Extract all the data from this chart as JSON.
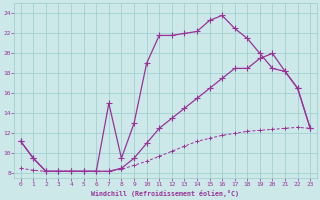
{
  "xlabel": "Windchill (Refroidissement éolien,°C)",
  "bg_color": "#cce8e8",
  "grid_color": "#99cccc",
  "line_color": "#993399",
  "xlim": [
    -0.5,
    23.5
  ],
  "ylim": [
    7.5,
    25.0
  ],
  "xticks": [
    0,
    1,
    2,
    3,
    4,
    5,
    6,
    7,
    8,
    9,
    10,
    11,
    12,
    13,
    14,
    15,
    16,
    17,
    18,
    19,
    20,
    21,
    22,
    23
  ],
  "yticks": [
    8,
    10,
    12,
    14,
    16,
    18,
    20,
    22,
    24
  ],
  "line1_x": [
    0,
    1,
    2,
    3,
    4,
    5,
    6,
    7,
    8,
    9,
    10,
    11,
    12,
    13,
    14,
    15,
    16,
    17,
    18,
    19,
    20,
    21,
    22,
    23
  ],
  "line1_y": [
    11.2,
    9.5,
    8.2,
    8.2,
    8.2,
    8.2,
    8.2,
    15.0,
    9.5,
    13.0,
    19.0,
    21.8,
    21.8,
    22.0,
    22.2,
    23.3,
    23.8,
    22.5,
    21.5,
    20.0,
    18.5,
    18.2,
    16.5,
    12.5
  ],
  "line2_x": [
    0,
    1,
    2,
    3,
    4,
    5,
    6,
    7,
    8,
    9,
    10,
    11,
    12,
    13,
    14,
    15,
    16,
    17,
    18,
    19,
    20,
    21,
    22,
    23
  ],
  "line2_y": [
    11.2,
    9.5,
    8.2,
    8.2,
    8.2,
    8.2,
    8.2,
    8.2,
    8.5,
    9.5,
    11.0,
    12.5,
    13.5,
    14.5,
    15.5,
    16.5,
    17.5,
    18.5,
    18.5,
    19.5,
    20.0,
    18.2,
    16.5,
    12.5
  ],
  "line3_x": [
    0,
    1,
    2,
    3,
    4,
    5,
    6,
    7,
    8,
    9,
    10,
    11,
    12,
    13,
    14,
    15,
    16,
    17,
    18,
    19,
    20,
    21,
    22,
    23
  ],
  "line3_y": [
    8.5,
    8.3,
    8.2,
    8.2,
    8.2,
    8.2,
    8.2,
    8.2,
    8.4,
    8.8,
    9.2,
    9.7,
    10.2,
    10.7,
    11.2,
    11.5,
    11.8,
    12.0,
    12.2,
    12.3,
    12.4,
    12.5,
    12.6,
    12.5
  ]
}
